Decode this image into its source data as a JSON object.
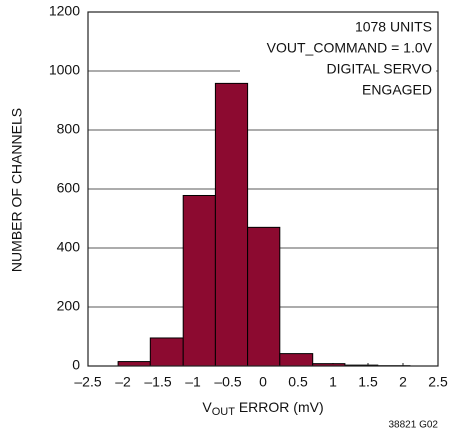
{
  "chart_data": {
    "type": "histogram",
    "x_label": {
      "main": "V",
      "subscript": "OUT",
      "rest": " ERROR (mV)"
    },
    "y_label": "NUMBER OF CHANNELS",
    "annotation": [
      "1078 UNITS",
      "VOUT_COMMAND = 1.0V",
      "DIGITAL SERVO",
      "ENGAGED"
    ],
    "code": "38821 G02",
    "bins": [
      -2.07,
      -1.61,
      -1.14,
      -0.68,
      -0.22,
      0.24,
      0.71,
      1.17,
      1.64,
      2.1
    ],
    "counts": [
      15,
      95,
      578,
      958,
      470,
      42,
      8,
      3,
      1
    ],
    "color": "#8c0a30",
    "xlim": [
      -2.5,
      2.5
    ],
    "xticks": [
      {
        "value": -2.5,
        "label": "–2.5"
      },
      {
        "value": -2,
        "label": "–2"
      },
      {
        "value": -1.5,
        "label": "–1.5"
      },
      {
        "value": -1,
        "label": "–1"
      },
      {
        "value": -0.5,
        "label": "–0.5"
      },
      0,
      0.5,
      1,
      1.5,
      2,
      2.5
    ],
    "ylim": [
      0,
      1200
    ],
    "yticks": [
      0,
      200,
      400,
      600,
      800,
      1000,
      1200
    ],
    "grid": true
  }
}
